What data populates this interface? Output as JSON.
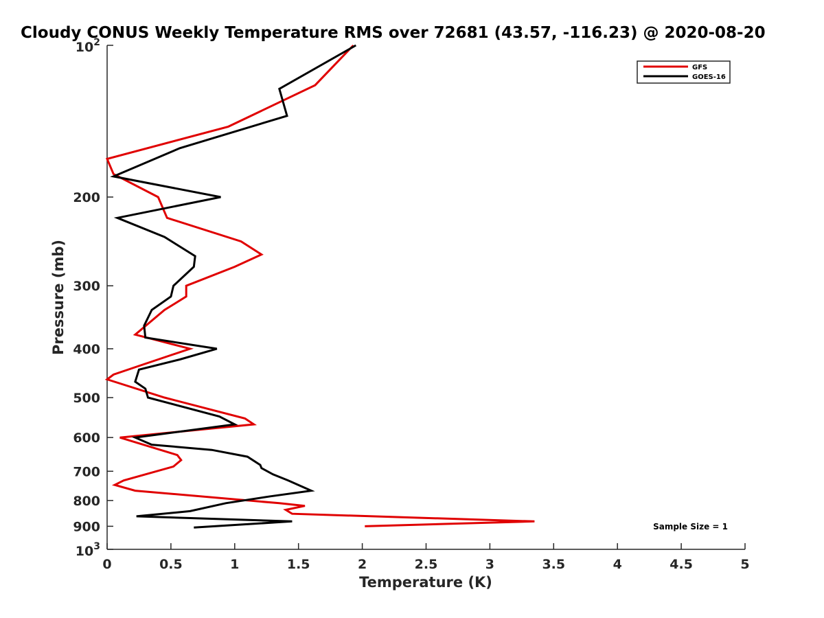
{
  "chart_data": {
    "type": "line",
    "title": "Cloudy CONUS Weekly Temperature RMS over 72681 (43.57, -116.23) @ 2020-08-20",
    "xlabel": "Temperature (K)",
    "ylabel": "Pressure (mb)",
    "xlim": [
      0,
      5
    ],
    "ylim": [
      100,
      1000
    ],
    "yscale": "log",
    "y_reversed": true,
    "grid": false,
    "x_ticks": [
      "0",
      "0.5",
      "1",
      "1.5",
      "2",
      "2.5",
      "3",
      "3.5",
      "4",
      "4.5",
      "5"
    ],
    "y_ticks": [
      {
        "value": 100,
        "base": "10",
        "exp": "2"
      },
      {
        "value": 200,
        "label": "200"
      },
      {
        "value": 300,
        "label": "300"
      },
      {
        "value": 400,
        "label": "400"
      },
      {
        "value": 500,
        "label": "500"
      },
      {
        "value": 600,
        "label": "600"
      },
      {
        "value": 700,
        "label": "700"
      },
      {
        "value": 800,
        "label": "800"
      },
      {
        "value": 900,
        "label": "900"
      },
      {
        "value": 1000,
        "base": "10",
        "exp": "3"
      }
    ],
    "legend_position": "top-right",
    "series": [
      {
        "name": "GFS",
        "color": "#e00000",
        "points": [
          [
            1.93,
            100
          ],
          [
            1.63,
            120
          ],
          [
            0.95,
            145
          ],
          [
            0.0,
            168
          ],
          [
            0.05,
            180
          ],
          [
            0.4,
            200
          ],
          [
            0.47,
            220
          ],
          [
            1.05,
            245
          ],
          [
            1.21,
            260
          ],
          [
            1.0,
            275
          ],
          [
            0.62,
            300
          ],
          [
            0.62,
            315
          ],
          [
            0.45,
            335
          ],
          [
            0.22,
            375
          ],
          [
            0.65,
            400
          ],
          [
            0.28,
            430
          ],
          [
            0.05,
            450
          ],
          [
            0.0,
            460
          ],
          [
            0.45,
            500
          ],
          [
            1.08,
            550
          ],
          [
            1.15,
            565
          ],
          [
            0.1,
            600
          ],
          [
            0.55,
            650
          ],
          [
            0.58,
            665
          ],
          [
            0.52,
            685
          ],
          [
            0.13,
            730
          ],
          [
            0.06,
            745
          ],
          [
            0.22,
            765
          ],
          [
            1.35,
            810
          ],
          [
            1.55,
            820
          ],
          [
            1.4,
            835
          ],
          [
            1.45,
            850
          ],
          [
            3.35,
            880
          ],
          [
            2.02,
            900
          ]
        ]
      },
      {
        "name": "GOES-16",
        "color": "#000000",
        "points": [
          [
            1.95,
            100
          ],
          [
            1.35,
            122
          ],
          [
            1.41,
            138
          ],
          [
            0.57,
            160
          ],
          [
            0.05,
            182
          ],
          [
            0.89,
            200
          ],
          [
            0.08,
            220
          ],
          [
            0.45,
            240
          ],
          [
            0.69,
            262
          ],
          [
            0.68,
            275
          ],
          [
            0.52,
            300
          ],
          [
            0.5,
            315
          ],
          [
            0.35,
            335
          ],
          [
            0.29,
            360
          ],
          [
            0.3,
            380
          ],
          [
            0.86,
            400
          ],
          [
            0.57,
            420
          ],
          [
            0.25,
            440
          ],
          [
            0.22,
            465
          ],
          [
            0.3,
            480
          ],
          [
            0.32,
            500
          ],
          [
            0.88,
            545
          ],
          [
            1.0,
            565
          ],
          [
            0.22,
            600
          ],
          [
            0.35,
            620
          ],
          [
            0.82,
            635
          ],
          [
            1.1,
            655
          ],
          [
            1.2,
            680
          ],
          [
            1.21,
            690
          ],
          [
            1.3,
            710
          ],
          [
            1.42,
            730
          ],
          [
            1.6,
            765
          ],
          [
            1.28,
            785
          ],
          [
            0.93,
            810
          ],
          [
            0.65,
            840
          ],
          [
            0.23,
            860
          ],
          [
            1.45,
            880
          ],
          [
            0.68,
            905
          ]
        ]
      }
    ],
    "annotations": [
      "Sample Size = 1"
    ]
  }
}
